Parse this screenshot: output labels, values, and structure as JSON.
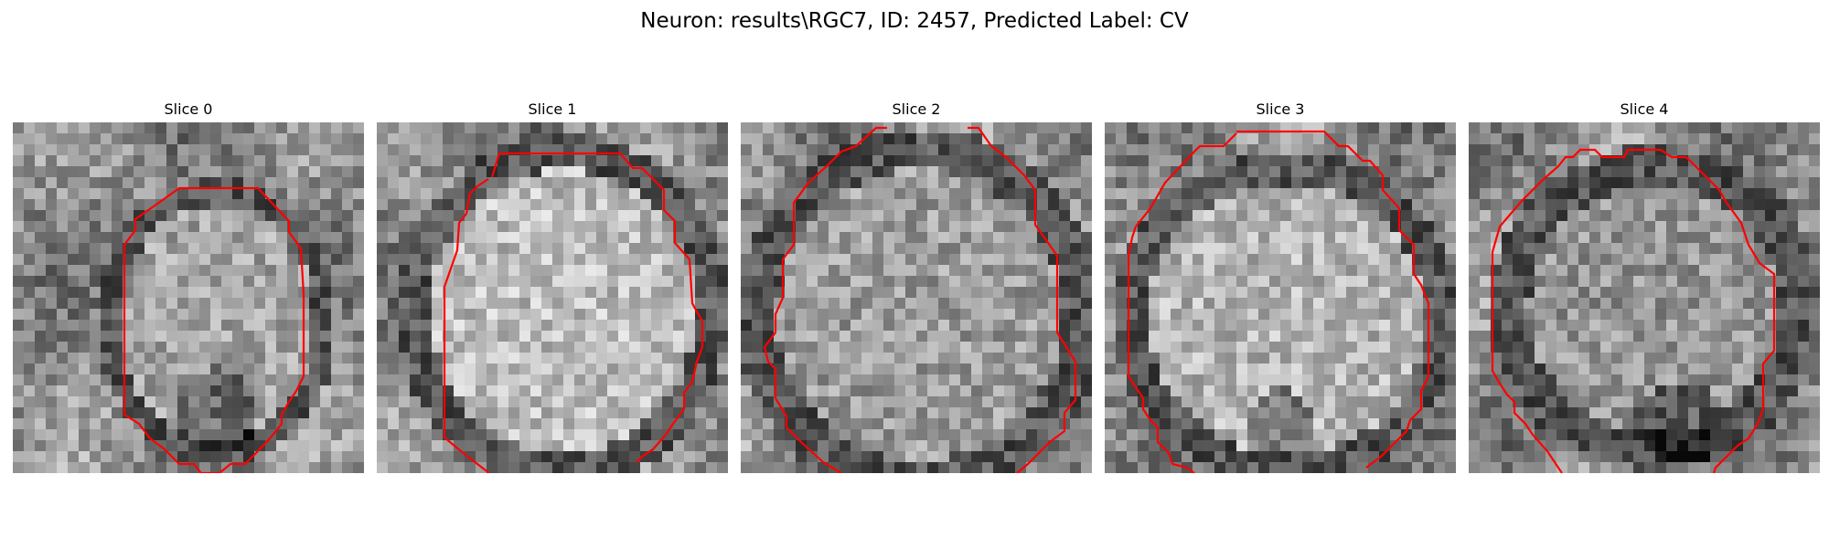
{
  "figure": {
    "title": "Neuron: results\\RGC7, ID: 2457, Predicted Label: CV",
    "contour_color": "#ff0000"
  },
  "panels": [
    {
      "title": "Slice 0",
      "brightness": "medium",
      "cell_appearance": "small oval, bright centre, dark lower region"
    },
    {
      "title": "Slice 1",
      "brightness": "bright",
      "cell_appearance": "large bright body, dark rim"
    },
    {
      "title": "Slice 2",
      "brightness": "medium",
      "cell_appearance": "large round body, dark ring"
    },
    {
      "title": "Slice 3",
      "brightness": "bright",
      "cell_appearance": "large round body, thin dark ring"
    },
    {
      "title": "Slice 4",
      "brightness": "medium",
      "cell_appearance": "round body, thick dark ring"
    }
  ]
}
